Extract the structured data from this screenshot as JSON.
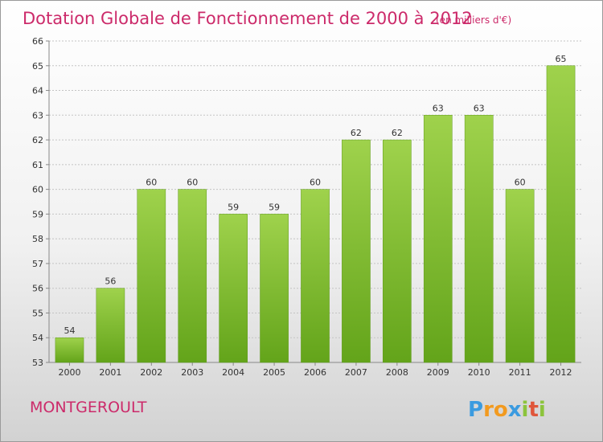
{
  "chart_data": {
    "type": "bar",
    "title": "Dotation Globale de Fonctionnement de 2000 à 2012",
    "unit": "(en milliers d'€)",
    "categories": [
      "2000",
      "2001",
      "2002",
      "2003",
      "2004",
      "2005",
      "2006",
      "2007",
      "2008",
      "2009",
      "2010",
      "2011",
      "2012"
    ],
    "values": [
      54,
      56,
      60,
      60,
      59,
      59,
      60,
      62,
      62,
      63,
      63,
      60,
      65
    ],
    "ylim": [
      53,
      66
    ],
    "yticks": [
      53,
      54,
      55,
      56,
      57,
      58,
      59,
      60,
      61,
      62,
      63,
      64,
      65,
      66
    ],
    "grid": true,
    "bar_color": "#7cb829"
  },
  "commune": "MONTGEROULT",
  "logo": {
    "letters": [
      "P",
      "r",
      "o",
      "x",
      "i",
      "t",
      "i"
    ],
    "colors": [
      "#3b9be0",
      "#f29a1f",
      "#f29a1f",
      "#3b9be0",
      "#8cc43c",
      "#e0563b",
      "#8cc43c"
    ]
  }
}
